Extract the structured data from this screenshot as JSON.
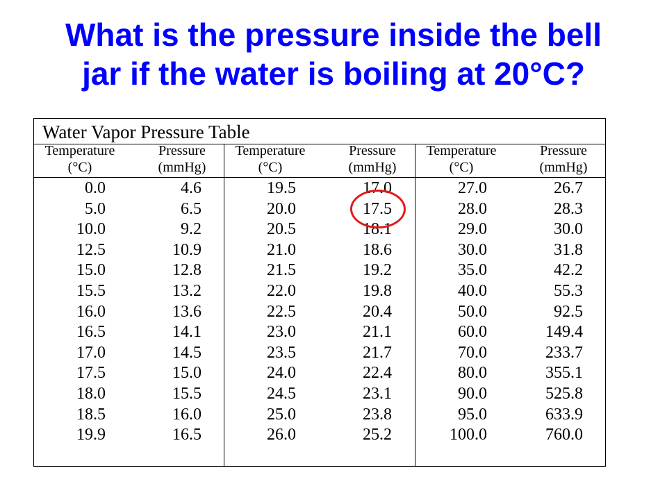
{
  "question": {
    "line1": "What is the pressure inside the bell",
    "line2": "jar if the water is boiling at 20°C?"
  },
  "table": {
    "title": "Water Vapor Pressure Table",
    "headers": {
      "temp_line1": "Temperature",
      "temp_line2": "(°C)",
      "pres_line1": "Pressure",
      "pres_line2": "(mmHg)"
    },
    "columns": [
      [
        [
          "0.0",
          "4.6"
        ],
        [
          "5.0",
          "6.5"
        ],
        [
          "10.0",
          "9.2"
        ],
        [
          "12.5",
          "10.9"
        ],
        [
          "15.0",
          "12.8"
        ],
        [
          "15.5",
          "13.2"
        ],
        [
          "16.0",
          "13.6"
        ],
        [
          "16.5",
          "14.1"
        ],
        [
          "17.0",
          "14.5"
        ],
        [
          "17.5",
          "15.0"
        ],
        [
          "18.0",
          "15.5"
        ],
        [
          "18.5",
          "16.0"
        ],
        [
          "19.9",
          "16.5"
        ]
      ],
      [
        [
          "19.5",
          "17.0"
        ],
        [
          "20.0",
          "17.5"
        ],
        [
          "20.5",
          "18.1"
        ],
        [
          "21.0",
          "18.6"
        ],
        [
          "21.5",
          "19.2"
        ],
        [
          "22.0",
          "19.8"
        ],
        [
          "22.5",
          "20.4"
        ],
        [
          "23.0",
          "21.1"
        ],
        [
          "23.5",
          "21.7"
        ],
        [
          "24.0",
          "22.4"
        ],
        [
          "24.5",
          "23.1"
        ],
        [
          "25.0",
          "23.8"
        ],
        [
          "26.0",
          "25.2"
        ]
      ],
      [
        [
          "27.0",
          "26.7"
        ],
        [
          "28.0",
          "28.3"
        ],
        [
          "29.0",
          "30.0"
        ],
        [
          "30.0",
          "31.8"
        ],
        [
          "35.0",
          "42.2"
        ],
        [
          "40.0",
          "55.3"
        ],
        [
          "50.0",
          "92.5"
        ],
        [
          "60.0",
          "149.4"
        ],
        [
          "70.0",
          "233.7"
        ],
        [
          "80.0",
          "355.1"
        ],
        [
          "90.0",
          "525.8"
        ],
        [
          "95.0",
          "633.9"
        ],
        [
          "100.0",
          "760.0"
        ]
      ]
    ],
    "highlight": {
      "column": 1,
      "row": 1,
      "color": "#e3171b"
    }
  },
  "colors": {
    "title": "#0000ff",
    "text": "#000000",
    "background": "#ffffff"
  }
}
